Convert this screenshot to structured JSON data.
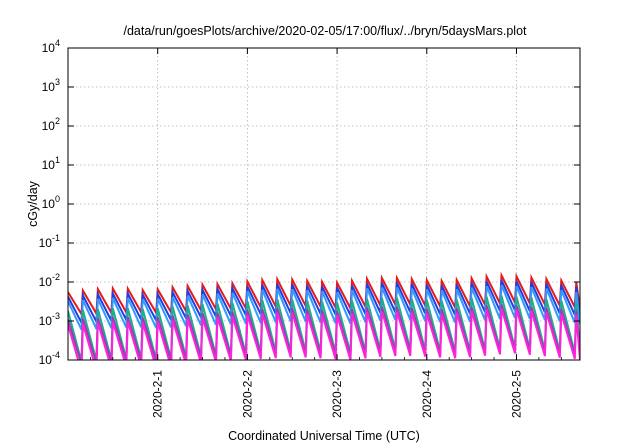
{
  "chart_data": {
    "type": "line",
    "title": "/data/run/goesPlots/archive/2020-02-05/17:00/flux/../bryn/5daysMars.plot",
    "xlabel": "Coordinated Universal Time (UTC)",
    "ylabel": "cGy/day",
    "y_scale": "log",
    "ylim": [
      0.0001,
      10000
    ],
    "y_tick_exponents": [
      -4,
      -3,
      -2,
      -1,
      0,
      1,
      2,
      3,
      4
    ],
    "y_tick_base": "10",
    "x_range": [
      "2020-01-31T00:00",
      "2020-02-05T17:00"
    ],
    "x_ticks": [
      "2020-2-1",
      "2020-2-2",
      "2020-2-3",
      "2020-2-4",
      "2020-2-5"
    ],
    "grid": true,
    "legend": "none",
    "cycle_hours": 4,
    "series": [
      {
        "color": "#e41a1c",
        "peaks": [
          0.0055,
          0.0065,
          0.007,
          0.006,
          0.0075,
          0.0085,
          0.009,
          0.011,
          0.012,
          0.0105,
          0.0095,
          0.012,
          0.013,
          0.0115,
          0.0105,
          0.0125,
          0.015,
          0.0135,
          0.0115,
          0.0095
        ],
        "troughs": [
          0.0015,
          0.0016,
          0.0017,
          0.0016,
          0.0018,
          0.002,
          0.0021,
          0.0023,
          0.0025,
          0.0023,
          0.0021,
          0.0025,
          0.0027,
          0.0024,
          0.0022,
          0.0026,
          0.003,
          0.0027,
          0.0024,
          0.002
        ]
      },
      {
        "color": "#1f3fe0",
        "peaks": [
          0.0042,
          0.0048,
          0.0052,
          0.0046,
          0.0056,
          0.0063,
          0.0068,
          0.0082,
          0.009,
          0.008,
          0.0072,
          0.009,
          0.0098,
          0.0088,
          0.008,
          0.0095,
          0.0112,
          0.0101,
          0.0087,
          0.0072
        ],
        "troughs": [
          0.0009,
          0.001,
          0.0011,
          0.001,
          0.0012,
          0.0013,
          0.0014,
          0.0015,
          0.0016,
          0.0015,
          0.0014,
          0.0016,
          0.0017,
          0.0015,
          0.0014,
          0.0017,
          0.0019,
          0.0017,
          0.0015,
          0.0013
        ]
      },
      {
        "color": "#3399ff",
        "peaks": [
          0.0032,
          0.0036,
          0.004,
          0.0035,
          0.0042,
          0.0048,
          0.0052,
          0.0062,
          0.0068,
          0.006,
          0.0054,
          0.0068,
          0.0074,
          0.0066,
          0.006,
          0.0072,
          0.0084,
          0.0076,
          0.0065,
          0.0054
        ],
        "troughs": [
          0.0006,
          0.00065,
          0.0007,
          0.00065,
          0.00075,
          0.0008,
          0.00085,
          0.0009,
          0.001,
          0.0009,
          0.00085,
          0.001,
          0.0011,
          0.00095,
          0.0009,
          0.00105,
          0.0012,
          0.0011,
          0.00095,
          0.0008
        ]
      },
      {
        "color": "#1fae8c",
        "peaks": [
          0.0018,
          0.002,
          0.0022,
          0.002,
          0.0024,
          0.0027,
          0.0029,
          0.0034,
          0.0037,
          0.0033,
          0.003,
          0.0037,
          0.004,
          0.0036,
          0.0033,
          0.0039,
          0.0045,
          0.0041,
          0.0035,
          0.003
        ],
        "troughs": [
          9e-05,
          0.0001,
          0.00011,
          0.0001,
          0.00012,
          0.00013,
          0.00014,
          0.00016,
          0.00017,
          0.00016,
          0.00015,
          0.00017,
          0.00019,
          0.00017,
          0.00016,
          0.00018,
          0.0002,
          0.00018,
          0.00016,
          0.00014
        ]
      },
      {
        "color": "#8e44ad",
        "peaks": [
          0.0011,
          0.0012,
          0.0013,
          0.0012,
          0.0014,
          0.0016,
          0.0017,
          0.002,
          0.0022,
          0.002,
          0.0018,
          0.0022,
          0.0024,
          0.0021,
          0.002,
          0.0023,
          0.0027,
          0.0024,
          0.0021,
          0.0018
        ],
        "troughs": [
          8e-05,
          9e-05,
          0.0001,
          9e-05,
          0.00011,
          0.00012,
          0.00013,
          0.00014,
          0.00015,
          0.00014,
          0.00013,
          0.00015,
          0.00016,
          0.00015,
          0.00014,
          0.00016,
          0.00018,
          0.00016,
          0.00014,
          0.00012
        ]
      },
      {
        "color": "#ff22dd",
        "peaks": [
          0.0008,
          0.0009,
          0.001,
          0.0009,
          0.0011,
          0.0012,
          0.0013,
          0.0015,
          0.0017,
          0.0015,
          0.0014,
          0.0017,
          0.0018,
          0.0016,
          0.0015,
          0.0018,
          0.0021,
          0.0019,
          0.0016,
          0.0014
        ],
        "troughs": [
          5e-05,
          6e-05,
          7e-05,
          6e-05,
          8e-05,
          9e-05,
          0.0001,
          0.00011,
          0.00012,
          0.00011,
          0.0001,
          0.00012,
          0.00013,
          0.00012,
          0.00011,
          0.00013,
          0.00015,
          0.00013,
          0.00011,
          0.0001
        ]
      }
    ]
  }
}
